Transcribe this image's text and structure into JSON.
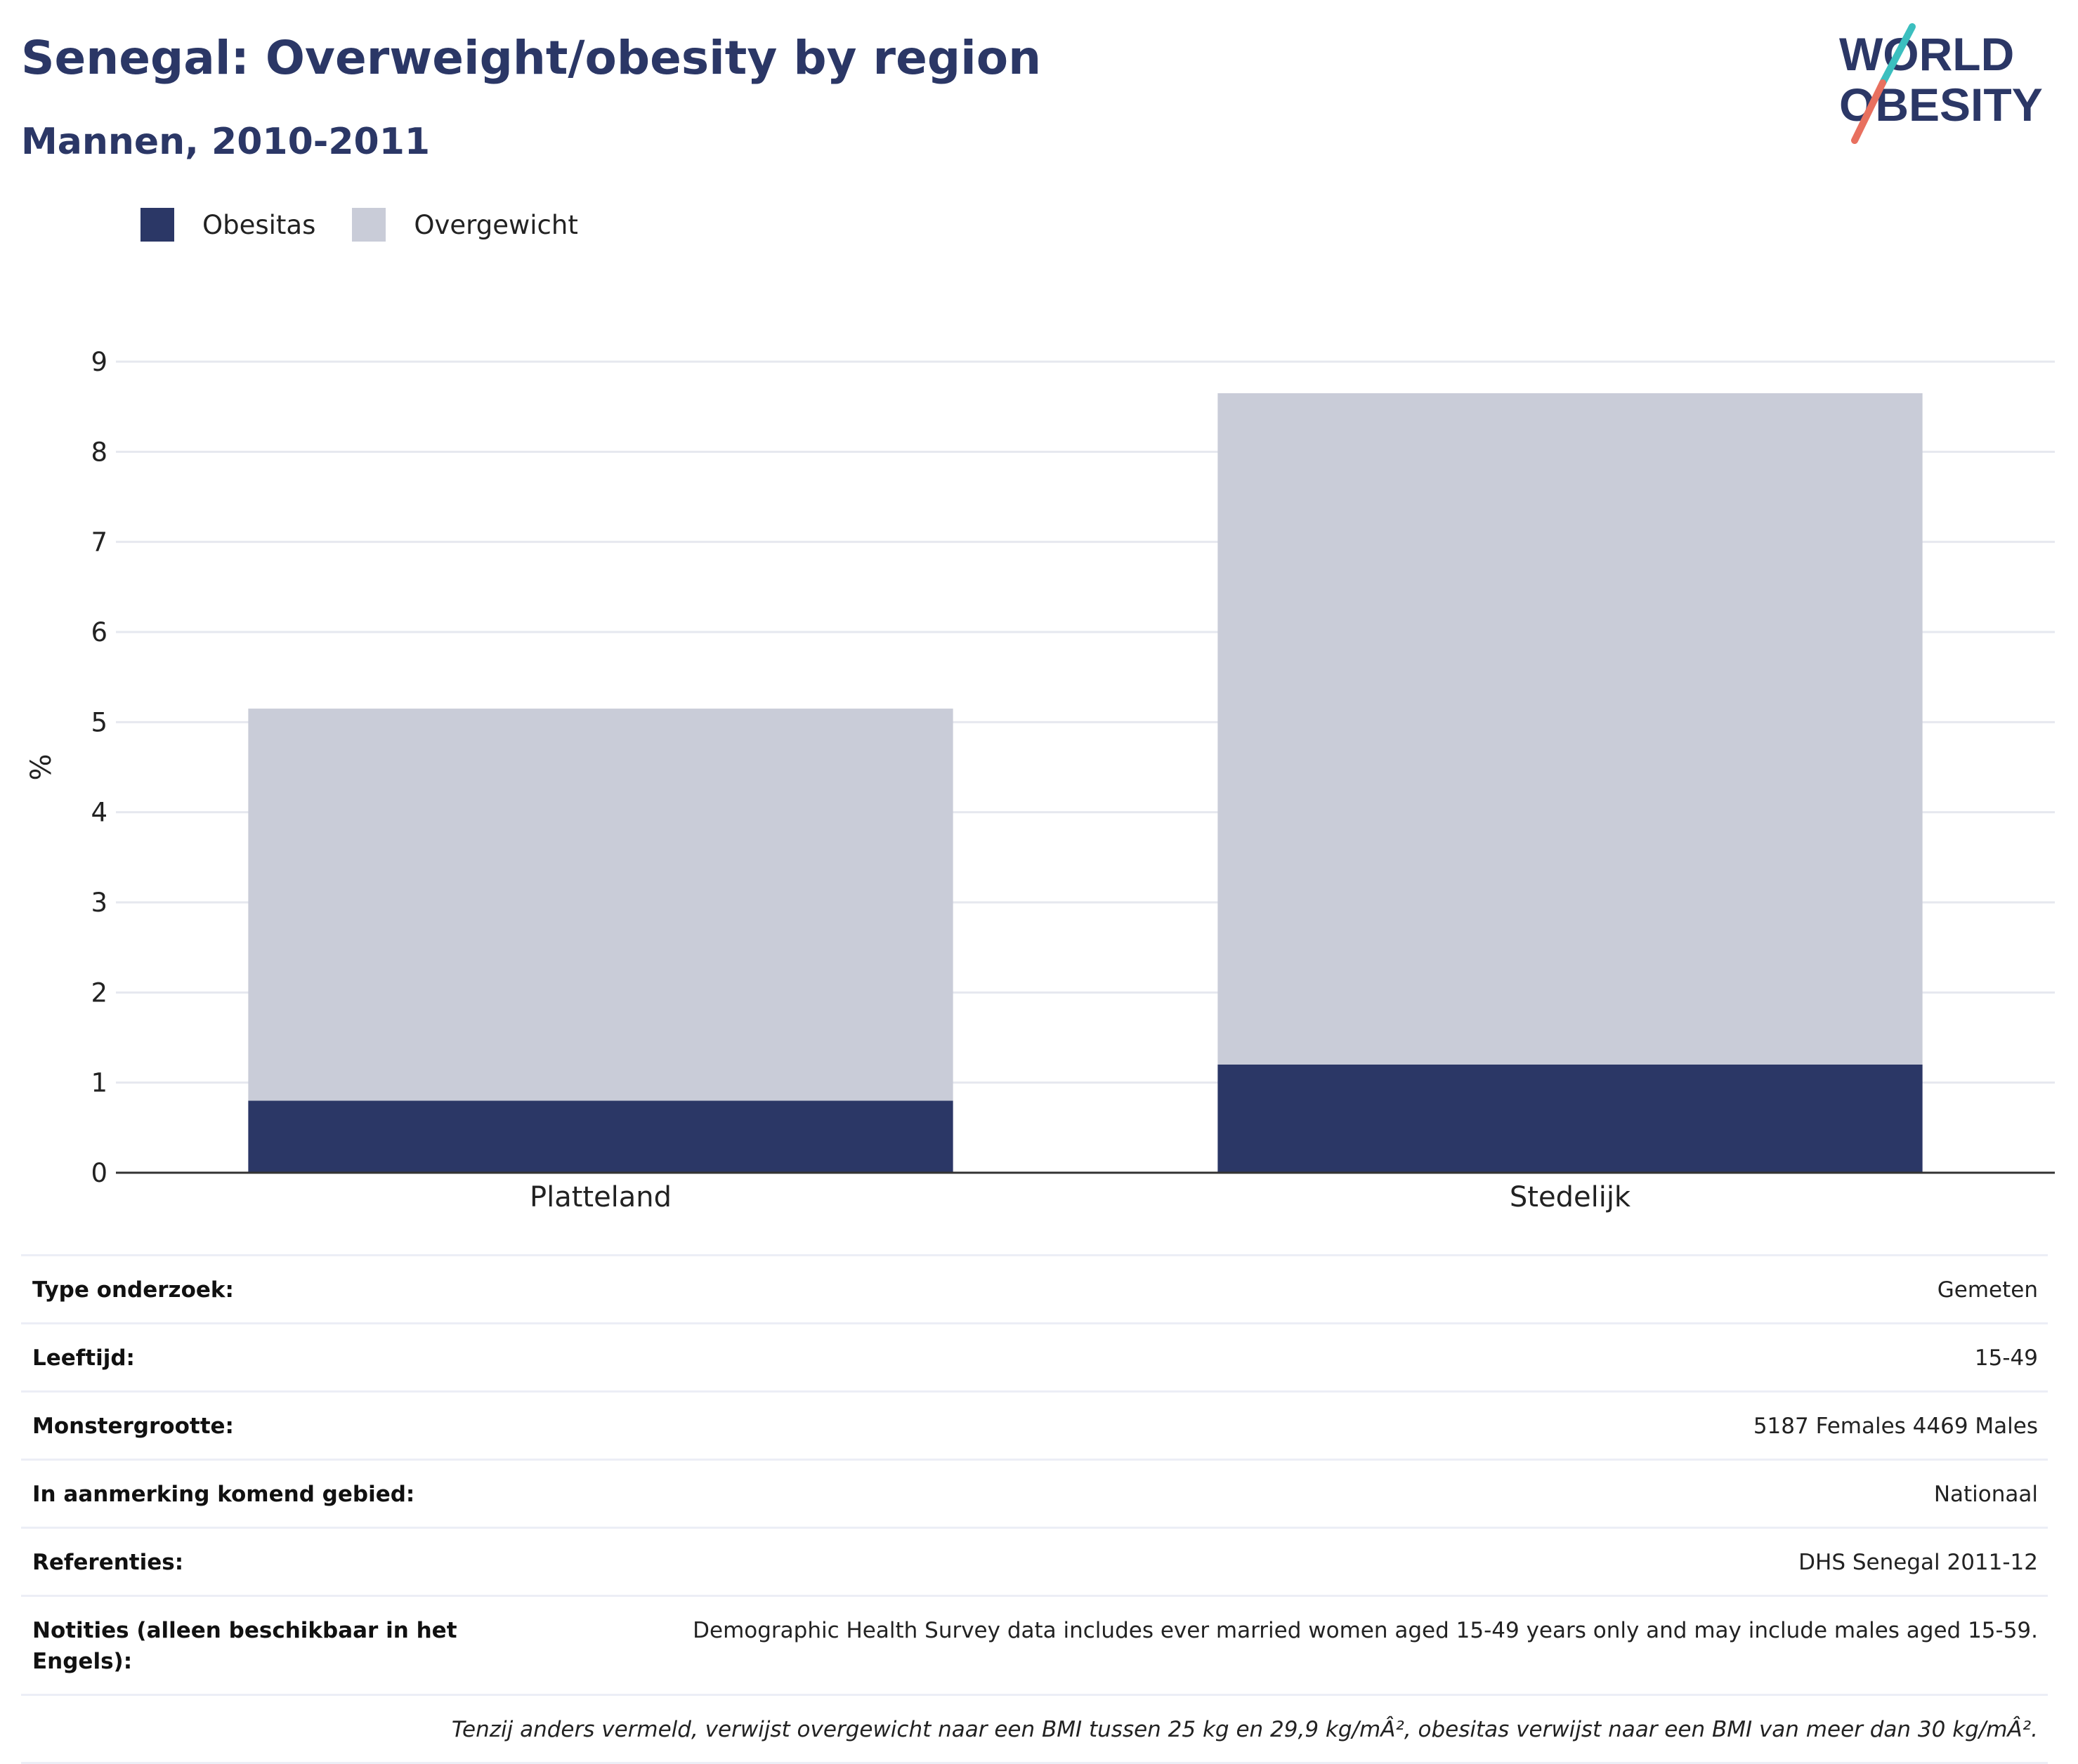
{
  "header": {
    "title": "Senegal: Overweight/obesity by region",
    "subtitle": "Mannen, 2010-2011"
  },
  "logo": {
    "line1": "WORLD",
    "line2": "OBESITY",
    "colors": {
      "text": "#2b3766",
      "slash_top": "#3bbfbf",
      "slash_bottom": "#e8705f"
    }
  },
  "legend": [
    {
      "label": "Obesitas",
      "color": "#2b3766"
    },
    {
      "label": "Overgewicht",
      "color": "#c9ccd8"
    }
  ],
  "chart_data": {
    "type": "bar",
    "stacked": true,
    "categories": [
      "Platteland",
      "Stedelijk"
    ],
    "series": [
      {
        "name": "Obesitas",
        "color": "#2b3766",
        "values": [
          0.8,
          1.2
        ]
      },
      {
        "name": "Overgewicht",
        "color": "#c9ccd8",
        "values": [
          4.35,
          7.45
        ]
      }
    ],
    "ylabel": "%",
    "ylim": [
      0,
      9
    ],
    "yticks": [
      0,
      1,
      2,
      3,
      4,
      5,
      6,
      7,
      8,
      9
    ],
    "grid": true,
    "legend_position": "top-left"
  },
  "info_table": [
    {
      "label": "Type onderzoek:",
      "value": "Gemeten"
    },
    {
      "label": "Leeftijd:",
      "value": "15-49"
    },
    {
      "label": "Monstergrootte:",
      "value": "5187 Females 4469 Males"
    },
    {
      "label": "In aanmerking komend gebied:",
      "value": "Nationaal"
    },
    {
      "label": "Referenties:",
      "value": "DHS Senegal 2011-12"
    },
    {
      "label": "Notities (alleen beschikbaar in het Engels):",
      "value": "Demographic Health Survey data includes ever married women aged 15-49 years only and may include males aged 15-59."
    }
  ],
  "footnote": "Tenzij anders vermeld, verwijst overgewicht naar een BMI tussen 25 kg en 29,9 kg/mÂ², obesitas verwijst naar een BMI van meer dan 30 kg/mÂ²."
}
